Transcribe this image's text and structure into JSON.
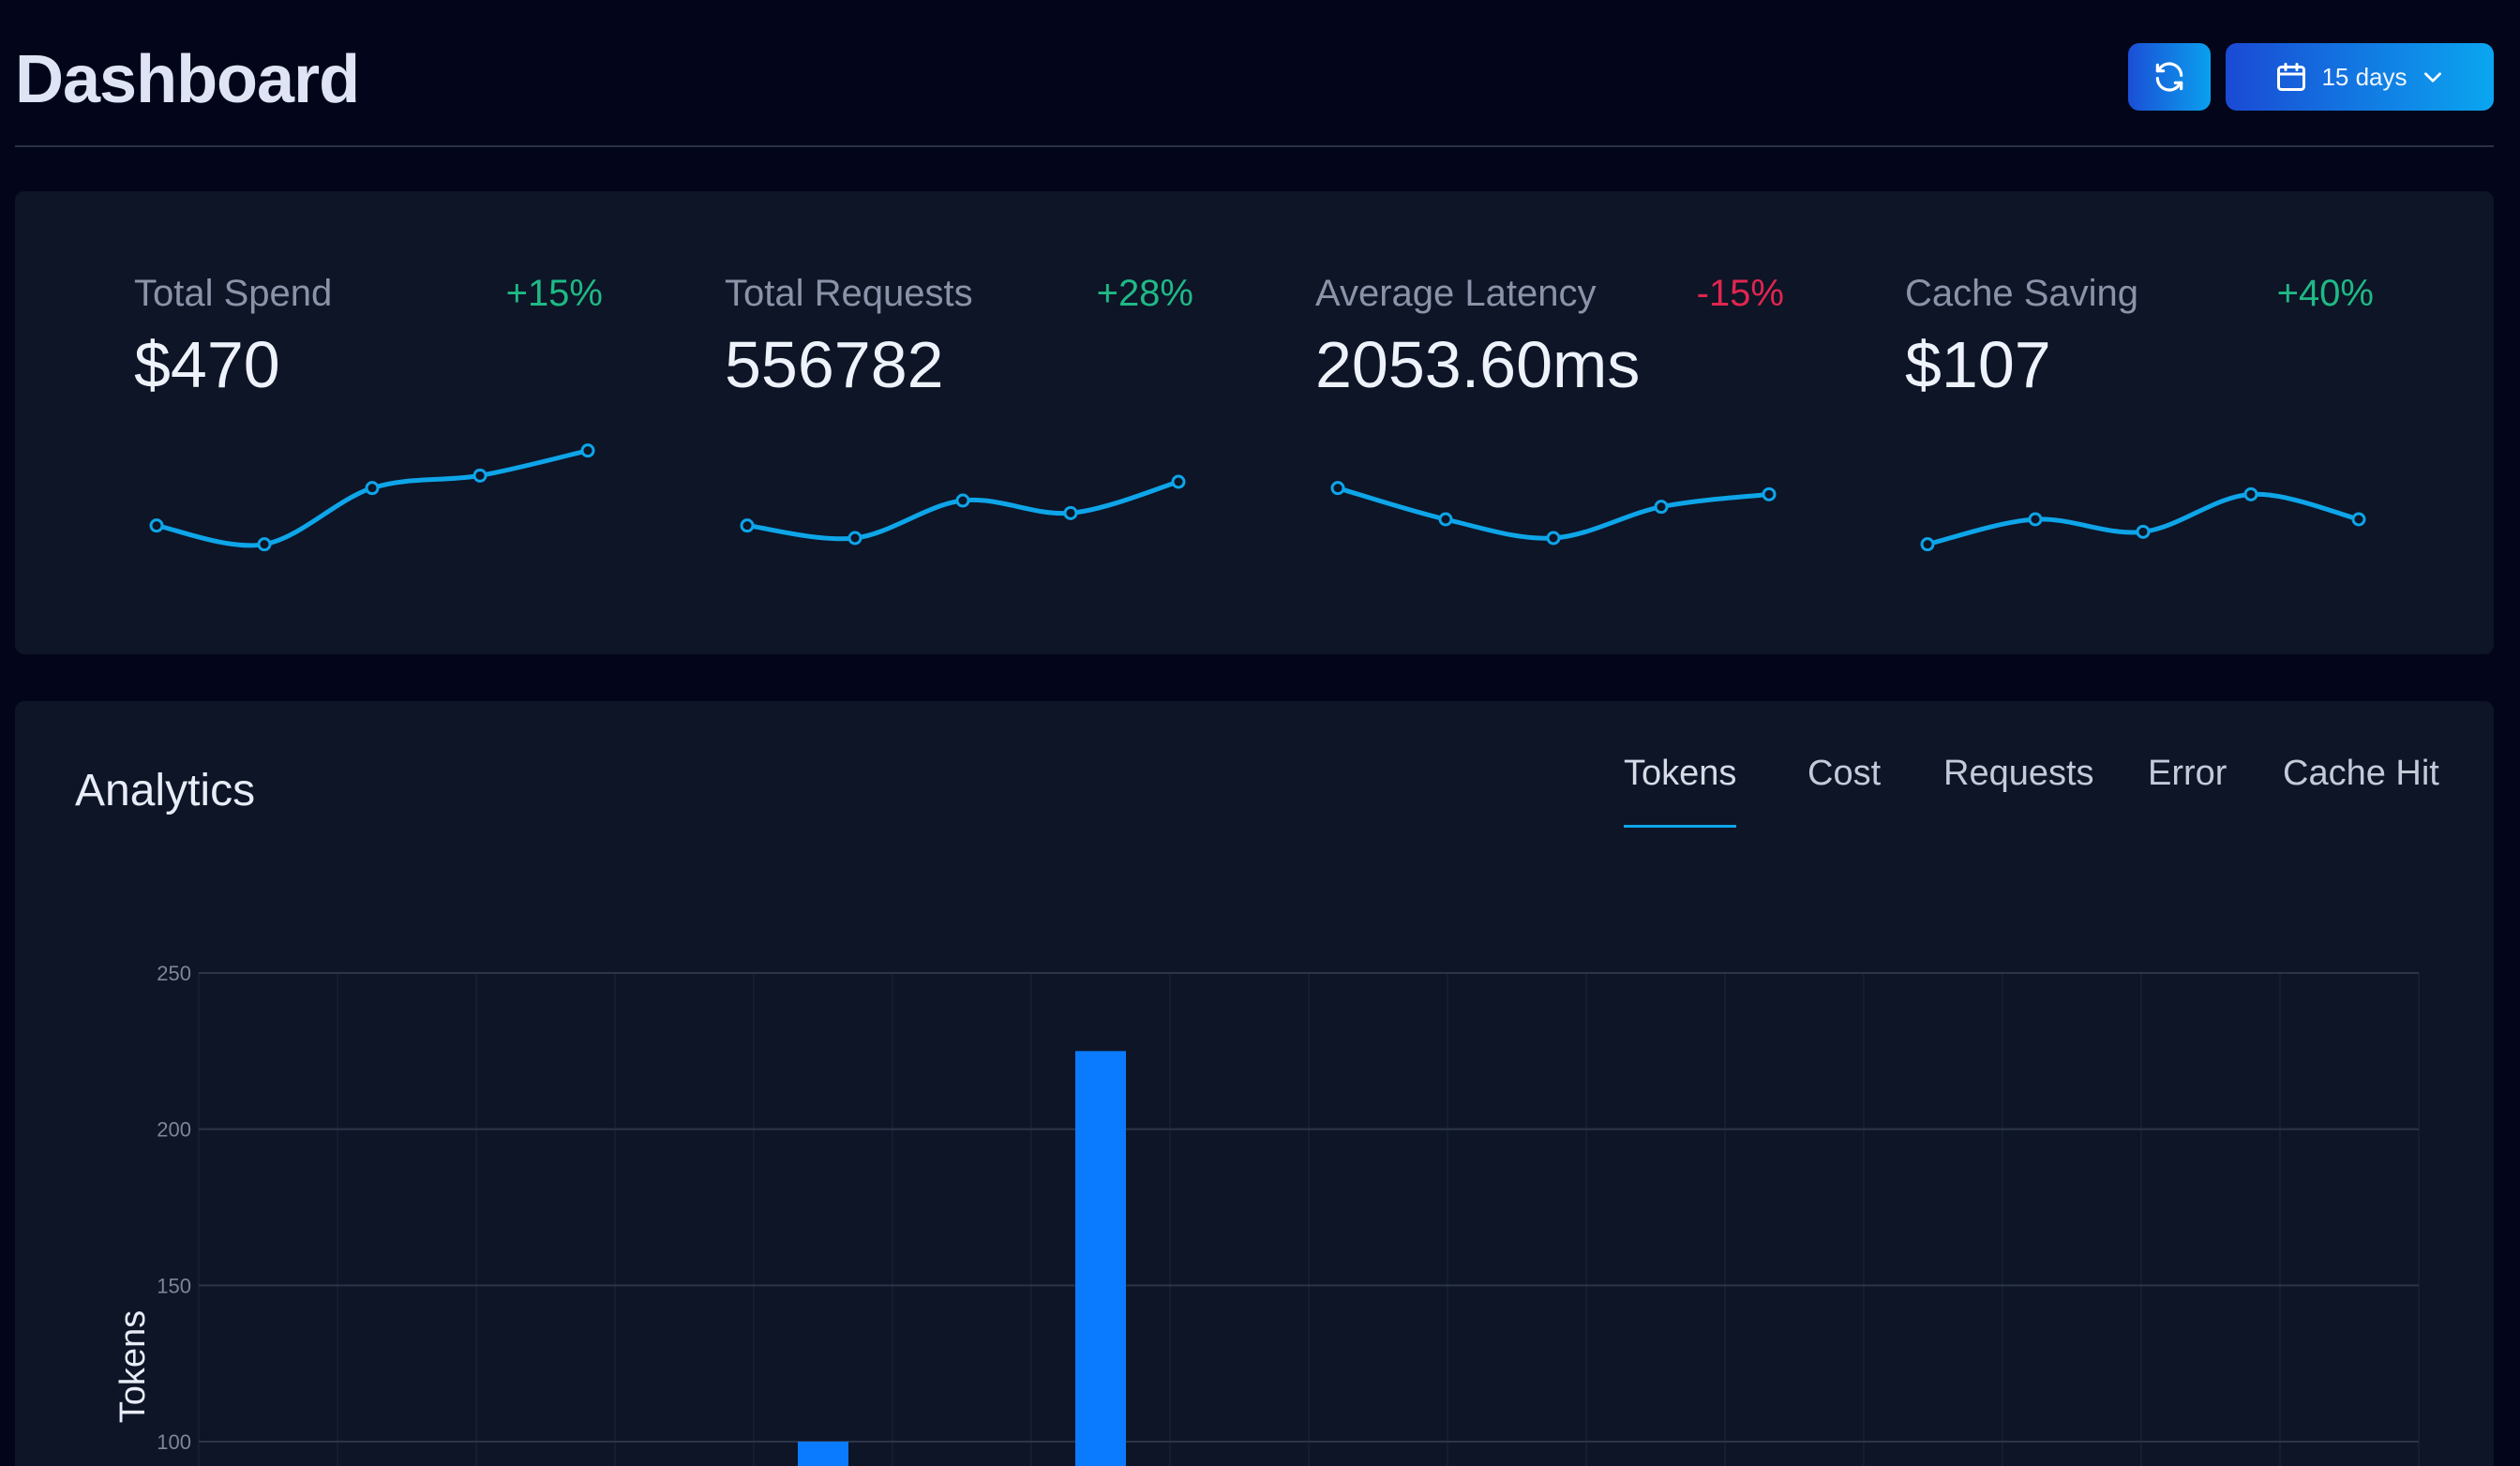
{
  "header": {
    "title": "Dashboard",
    "refresh_icon": "refresh-icon",
    "range_icon": "calendar-icon",
    "range_label": "15 days",
    "range_chevron": "chevron-down-icon"
  },
  "stats": [
    {
      "label": "Total Spend",
      "value": "$470",
      "change": "+15%",
      "trend": "pos",
      "spark": [
        5,
        2,
        11,
        13,
        17
      ]
    },
    {
      "label": "Total Requests",
      "value": "556782",
      "change": "+28%",
      "trend": "pos",
      "spark": [
        5,
        3,
        9,
        7,
        12
      ]
    },
    {
      "label": "Average Latency",
      "value": "2053.60ms",
      "change": "-15%",
      "trend": "neg",
      "spark": [
        11,
        6,
        3,
        8,
        10
      ]
    },
    {
      "label": "Cache Saving",
      "value": "$107",
      "change": "+40%",
      "trend": "pos",
      "spark": [
        2,
        6,
        4,
        10,
        6
      ]
    }
  ],
  "colors": {
    "accent": "#0ea5e9",
    "bar": "#0a7bff",
    "positive": "#1fb985",
    "negative": "#e0264f",
    "card": "#0d1527",
    "background": "#03061a"
  },
  "analytics": {
    "title": "Analytics",
    "tabs": [
      {
        "label": "Tokens",
        "active": true
      },
      {
        "label": "Cost",
        "active": false
      },
      {
        "label": "Requests",
        "active": false
      },
      {
        "label": "Error",
        "active": false
      },
      {
        "label": "Cache Hit",
        "active": false
      }
    ]
  },
  "chart_data": {
    "type": "bar",
    "ylabel": "Tokens",
    "ylim": [
      0,
      250
    ],
    "y_ticks": [
      250,
      200,
      150,
      100
    ],
    "categories_count": 16,
    "values": [
      0,
      0,
      0,
      0,
      100,
      0,
      225,
      0,
      0,
      0,
      0,
      0,
      0,
      0,
      0,
      0
    ],
    "grid": true
  }
}
